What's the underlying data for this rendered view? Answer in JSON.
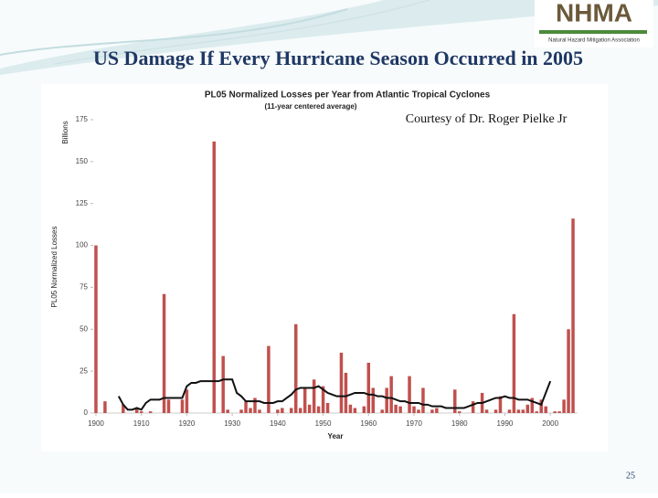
{
  "slide": {
    "title": "US Damage If Every Hurricane Season Occurred in 2005",
    "courtesy": "Courtesy of Dr. Roger Pielke Jr",
    "logo": "NHMA",
    "logo_subtitle": "Natural Hazard Mitigation Association",
    "page_number": "25"
  },
  "chart_data": {
    "type": "bar",
    "title": "PL05 Normalized Losses per Year from Atlantic Tropical Cyclones",
    "subtitle": "(11-year centered average)",
    "y_unit": "Billions",
    "y_label": "PL05 Normalized Losses",
    "x_label": "Year",
    "x": [
      1900,
      1901,
      1902,
      1903,
      1904,
      1905,
      1906,
      1907,
      1908,
      1909,
      1910,
      1911,
      1912,
      1913,
      1914,
      1915,
      1916,
      1917,
      1918,
      1919,
      1920,
      1921,
      1922,
      1923,
      1924,
      1925,
      1926,
      1927,
      1928,
      1929,
      1930,
      1931,
      1932,
      1933,
      1934,
      1935,
      1936,
      1937,
      1938,
      1939,
      1940,
      1941,
      1942,
      1943,
      1944,
      1945,
      1946,
      1947,
      1948,
      1949,
      1950,
      1951,
      1952,
      1953,
      1954,
      1955,
      1956,
      1957,
      1958,
      1959,
      1960,
      1961,
      1962,
      1963,
      1964,
      1965,
      1966,
      1967,
      1968,
      1969,
      1970,
      1971,
      1972,
      1973,
      1974,
      1975,
      1976,
      1977,
      1978,
      1979,
      1980,
      1981,
      1982,
      1983,
      1984,
      1985,
      1986,
      1987,
      1988,
      1989,
      1990,
      1991,
      1992,
      1993,
      1994,
      1995,
      1996,
      1997,
      1998,
      1999,
      2000,
      2001,
      2002,
      2003,
      2004,
      2005
    ],
    "series": [
      {
        "type": "bar",
        "color": "#c0504d",
        "values": [
          100,
          0,
          7,
          0,
          0,
          0,
          5,
          0,
          0,
          3,
          1,
          0,
          1,
          0,
          0,
          71,
          8,
          0,
          0,
          8,
          14,
          0,
          0,
          0,
          0,
          0,
          162,
          0,
          34,
          2,
          0,
          0,
          2,
          7,
          3,
          9,
          2,
          0,
          40,
          0,
          2,
          3,
          0,
          3,
          53,
          3,
          15,
          5,
          20,
          4,
          16,
          6,
          0,
          0,
          36,
          24,
          5,
          3,
          0,
          4,
          30,
          15,
          0,
          2,
          15,
          22,
          5,
          4,
          0,
          22,
          4,
          2,
          15,
          0,
          2,
          3,
          0,
          0,
          0,
          14,
          1,
          0,
          0,
          7,
          0,
          12,
          2,
          0,
          2,
          10,
          0,
          2,
          59,
          2,
          2,
          5,
          9,
          1,
          8,
          4,
          0,
          1,
          1,
          8,
          50,
          116
        ]
      },
      {
        "type": "line",
        "color": "#111111",
        "values": [
          null,
          null,
          null,
          null,
          null,
          10,
          5,
          2,
          2,
          3,
          2,
          6,
          8,
          8,
          8,
          9,
          9,
          9,
          9,
          9,
          16,
          18,
          18,
          19,
          19,
          19,
          19,
          19,
          20,
          20,
          20,
          12,
          10,
          7,
          7,
          7,
          7,
          6,
          6,
          6,
          7,
          7,
          9,
          11,
          14,
          15,
          15,
          15,
          15,
          16,
          14,
          12,
          11,
          10,
          10,
          10,
          11,
          12,
          12,
          12,
          11,
          11,
          10,
          10,
          9,
          9,
          8,
          7,
          7,
          6,
          6,
          6,
          5,
          5,
          4,
          4,
          4,
          3,
          3,
          3,
          3,
          3,
          4,
          5,
          6,
          6,
          7,
          8,
          9,
          9,
          10,
          9,
          9,
          8,
          8,
          8,
          7,
          6,
          5,
          12,
          19,
          null,
          null,
          null,
          null,
          null
        ]
      }
    ],
    "xlim": [
      1899,
      2006
    ],
    "xticks": [
      1900,
      1910,
      1920,
      1930,
      1940,
      1950,
      1960,
      1970,
      1980,
      1990,
      2000
    ],
    "ylim": [
      0,
      175
    ],
    "yticks": [
      0,
      25,
      50,
      75,
      100,
      125,
      150,
      175
    ],
    "grid": false
  }
}
